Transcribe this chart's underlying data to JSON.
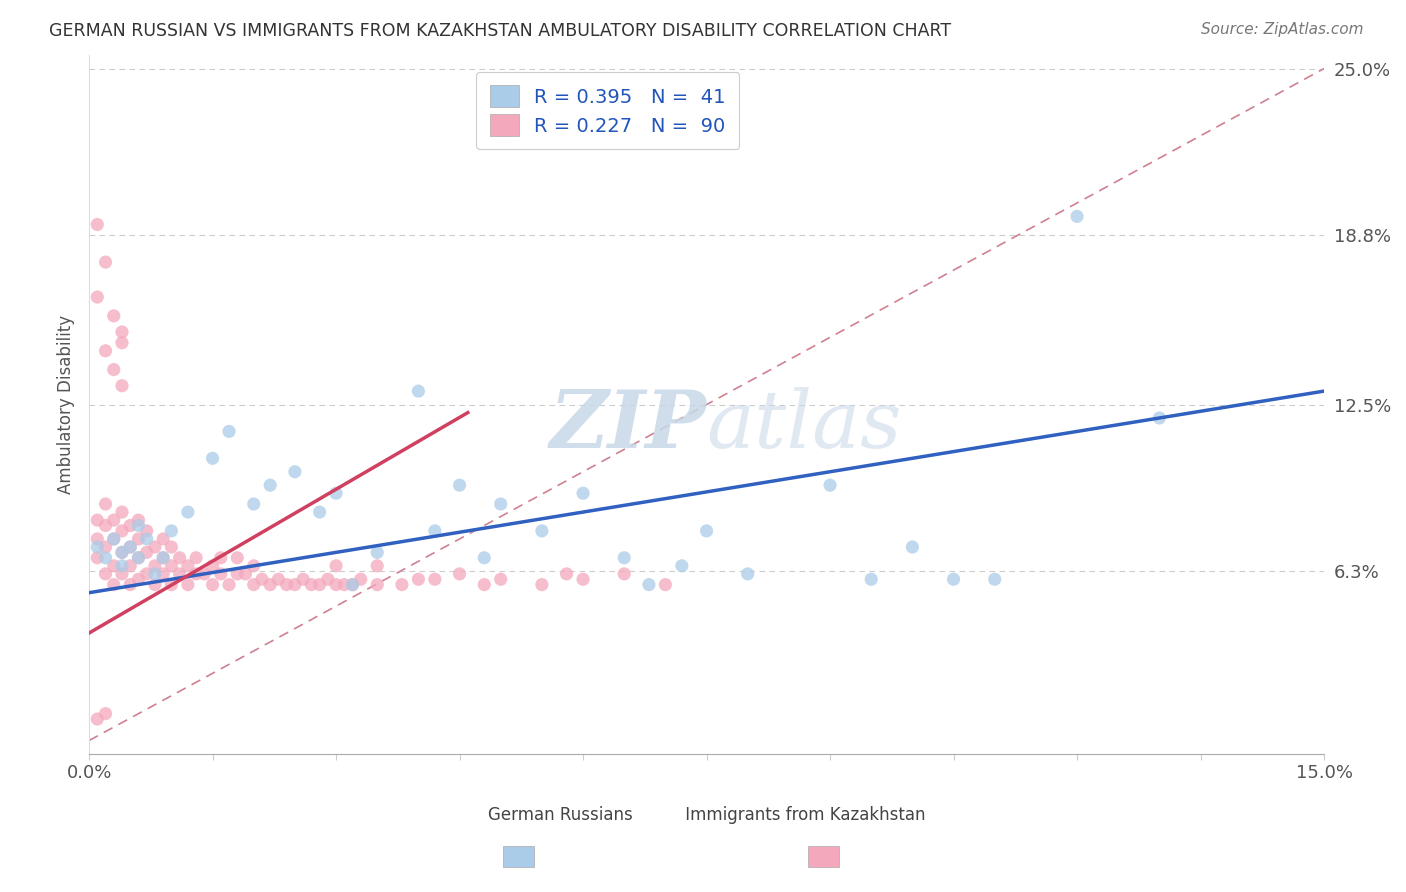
{
  "title": "GERMAN RUSSIAN VS IMMIGRANTS FROM KAZAKHSTAN AMBULATORY DISABILITY CORRELATION CHART",
  "source": "Source: ZipAtlas.com",
  "ylabel": "Ambulatory Disability",
  "xlim": [
    0.0,
    0.15
  ],
  "ylim": [
    -0.005,
    0.255
  ],
  "ytick_positions": [
    0.063,
    0.125,
    0.188,
    0.25
  ],
  "ytick_labels": [
    "6.3%",
    "12.5%",
    "18.8%",
    "25.0%"
  ],
  "legend_r1": "R = 0.395",
  "legend_n1": "N =  41",
  "legend_r2": "R = 0.227",
  "legend_n2": "N =  90",
  "color_blue": "#aacce8",
  "color_pink": "#f4a8bc",
  "line_blue": "#3060c0",
  "line_pink": "#d04060",
  "line_dashed_color": "#d08090",
  "watermark_zip": "ZIP",
  "watermark_atlas": "atlas",
  "blue_scatter_x": [
    0.001,
    0.002,
    0.003,
    0.004,
    0.004,
    0.005,
    0.006,
    0.006,
    0.007,
    0.008,
    0.009,
    0.01,
    0.012,
    0.015,
    0.017,
    0.02,
    0.022,
    0.025,
    0.028,
    0.03,
    0.032,
    0.035,
    0.04,
    0.042,
    0.045,
    0.048,
    0.05,
    0.055,
    0.06,
    0.065,
    0.068,
    0.072,
    0.075,
    0.08,
    0.09,
    0.095,
    0.1,
    0.105,
    0.11,
    0.12,
    0.13
  ],
  "blue_scatter_y": [
    0.072,
    0.068,
    0.075,
    0.07,
    0.065,
    0.072,
    0.068,
    0.08,
    0.075,
    0.062,
    0.068,
    0.078,
    0.085,
    0.105,
    0.115,
    0.088,
    0.095,
    0.1,
    0.085,
    0.092,
    0.058,
    0.07,
    0.13,
    0.078,
    0.095,
    0.068,
    0.088,
    0.078,
    0.092,
    0.068,
    0.058,
    0.065,
    0.078,
    0.062,
    0.095,
    0.06,
    0.072,
    0.06,
    0.06,
    0.195,
    0.12
  ],
  "pink_scatter_x": [
    0.001,
    0.001,
    0.001,
    0.002,
    0.002,
    0.002,
    0.002,
    0.003,
    0.003,
    0.003,
    0.003,
    0.004,
    0.004,
    0.004,
    0.004,
    0.005,
    0.005,
    0.005,
    0.005,
    0.006,
    0.006,
    0.006,
    0.006,
    0.007,
    0.007,
    0.007,
    0.008,
    0.008,
    0.008,
    0.009,
    0.009,
    0.009,
    0.01,
    0.01,
    0.01,
    0.011,
    0.011,
    0.012,
    0.012,
    0.013,
    0.013,
    0.014,
    0.015,
    0.015,
    0.016,
    0.016,
    0.017,
    0.018,
    0.018,
    0.019,
    0.02,
    0.02,
    0.021,
    0.022,
    0.023,
    0.024,
    0.025,
    0.026,
    0.027,
    0.028,
    0.029,
    0.03,
    0.03,
    0.031,
    0.032,
    0.033,
    0.035,
    0.035,
    0.038,
    0.04,
    0.042,
    0.045,
    0.048,
    0.05,
    0.055,
    0.058,
    0.06,
    0.065,
    0.07,
    0.001,
    0.001,
    0.002,
    0.002,
    0.003,
    0.003,
    0.004,
    0.004,
    0.004,
    0.002,
    0.001
  ],
  "pink_scatter_y": [
    0.068,
    0.075,
    0.082,
    0.062,
    0.072,
    0.08,
    0.088,
    0.058,
    0.065,
    0.075,
    0.082,
    0.062,
    0.07,
    0.078,
    0.085,
    0.058,
    0.065,
    0.072,
    0.08,
    0.06,
    0.068,
    0.075,
    0.082,
    0.062,
    0.07,
    0.078,
    0.058,
    0.065,
    0.072,
    0.062,
    0.068,
    0.075,
    0.058,
    0.065,
    0.072,
    0.062,
    0.068,
    0.058,
    0.065,
    0.062,
    0.068,
    0.062,
    0.058,
    0.065,
    0.062,
    0.068,
    0.058,
    0.062,
    0.068,
    0.062,
    0.058,
    0.065,
    0.06,
    0.058,
    0.06,
    0.058,
    0.058,
    0.06,
    0.058,
    0.058,
    0.06,
    0.058,
    0.065,
    0.058,
    0.058,
    0.06,
    0.058,
    0.065,
    0.058,
    0.06,
    0.06,
    0.062,
    0.058,
    0.06,
    0.058,
    0.062,
    0.06,
    0.062,
    0.058,
    0.192,
    0.165,
    0.178,
    0.145,
    0.158,
    0.138,
    0.152,
    0.132,
    0.148,
    0.01,
    0.008
  ]
}
